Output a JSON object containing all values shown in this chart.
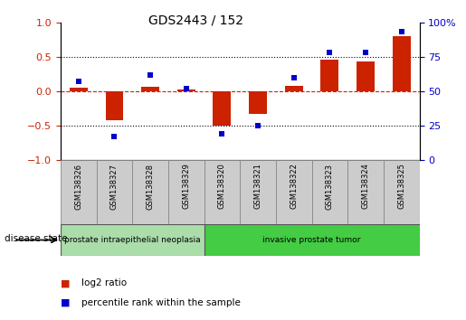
{
  "title": "GDS2443 / 152",
  "samples": [
    "GSM138326",
    "GSM138327",
    "GSM138328",
    "GSM138329",
    "GSM138320",
    "GSM138321",
    "GSM138322",
    "GSM138323",
    "GSM138324",
    "GSM138325"
  ],
  "log2_ratio": [
    0.05,
    -0.42,
    0.07,
    0.02,
    -0.5,
    -0.33,
    0.08,
    0.46,
    0.43,
    0.8
  ],
  "percentile_rank": [
    57,
    17,
    62,
    52,
    19,
    25,
    60,
    78,
    78,
    93
  ],
  "ylim_left": [
    -1,
    1
  ],
  "ylim_right": [
    0,
    100
  ],
  "yticks_left": [
    -1,
    -0.5,
    0,
    0.5,
    1
  ],
  "yticks_right": [
    0,
    25,
    50,
    75,
    100
  ],
  "hlines_dotted": [
    -0.5,
    0.5
  ],
  "bar_color": "#cc2200",
  "dot_color": "#0000cc",
  "disease_groups": [
    {
      "label": "prostate intraepithelial neoplasia",
      "start": 0,
      "end": 4,
      "color": "#aaddaa"
    },
    {
      "label": "invasive prostate tumor",
      "start": 4,
      "end": 10,
      "color": "#44cc44"
    }
  ],
  "legend_items": [
    {
      "label": "log2 ratio",
      "color": "#cc2200"
    },
    {
      "label": "percentile rank within the sample",
      "color": "#0000cc"
    }
  ],
  "disease_state_label": "disease state",
  "background_color": "#ffffff",
  "plot_bg": "#ffffff",
  "right_axis_color": "#0000cc",
  "left_axis_color": "#cc2200",
  "figsize": [
    5.15,
    3.54
  ],
  "dpi": 100
}
